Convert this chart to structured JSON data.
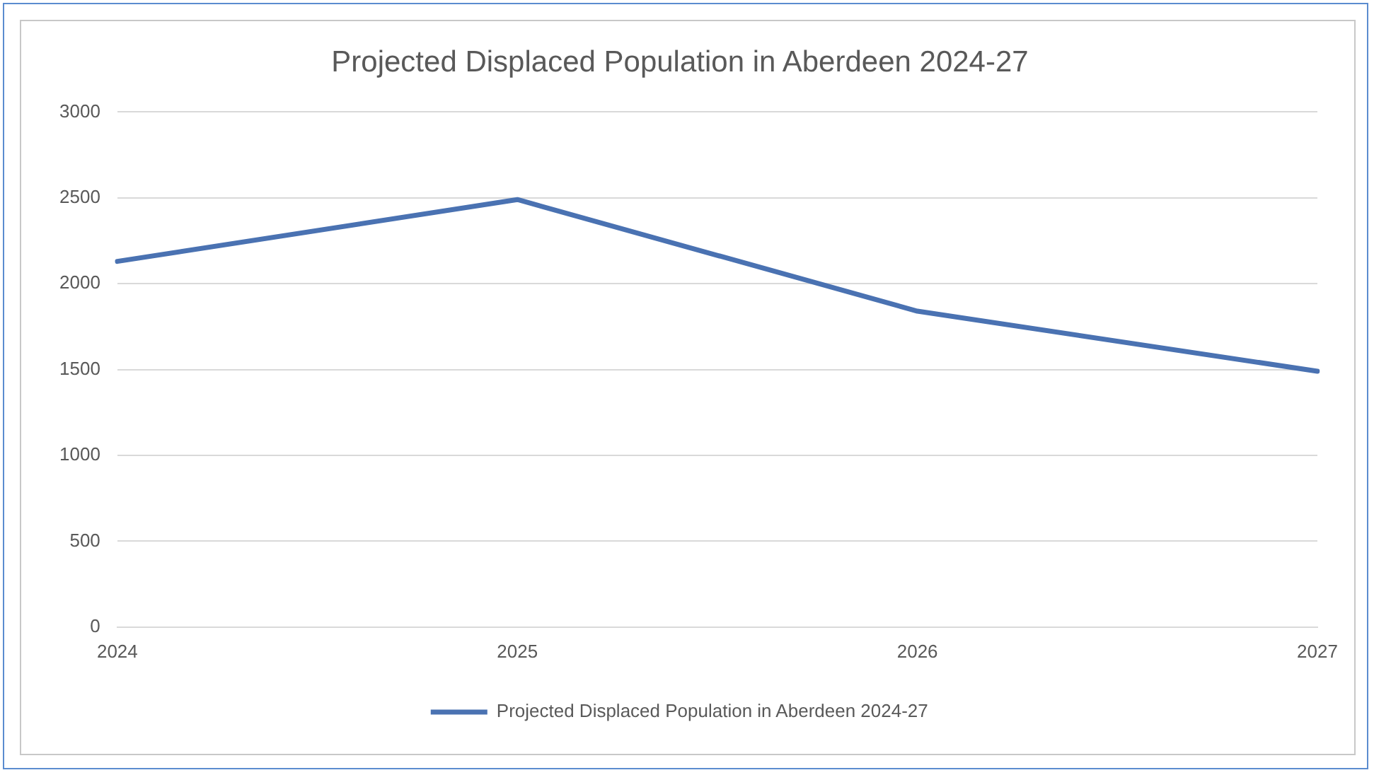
{
  "chart_data": {
    "type": "line",
    "title": "Projected Displaced Population in Aberdeen 2024-27",
    "categories": [
      "2024",
      "2025",
      "2026",
      "2027"
    ],
    "series": [
      {
        "name": "Projected Displaced Population in Aberdeen 2024-27",
        "color": "#4a72b2",
        "values": [
          2130,
          2490,
          1840,
          1490
        ]
      }
    ],
    "ylim": [
      0,
      3000
    ],
    "yticks": [
      0,
      500,
      1000,
      1500,
      2000,
      2500,
      3000
    ],
    "grid": "y",
    "legend": "bottom",
    "marker": "none"
  }
}
